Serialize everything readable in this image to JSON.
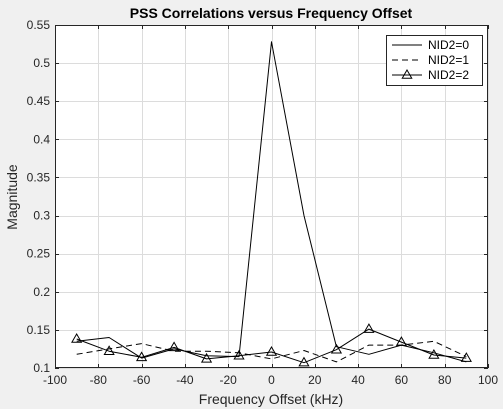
{
  "chart_data": {
    "type": "line",
    "title": "PSS Correlations versus Frequency Offset",
    "xlabel": "Frequency Offset (kHz)",
    "ylabel": "Magnitude",
    "xlim": [
      -100,
      100
    ],
    "ylim": [
      0.1,
      0.55
    ],
    "xticks": [
      "-100",
      "-80",
      "-60",
      "-40",
      "-20",
      "0",
      "20",
      "40",
      "60",
      "80",
      "100"
    ],
    "yticks": [
      "0.1",
      "0.15",
      "0.2",
      "0.25",
      "0.3",
      "0.35",
      "0.4",
      "0.45",
      "0.5",
      "0.55"
    ],
    "grid": true,
    "legend_position": "top-right",
    "x": [
      -90,
      -75,
      -60,
      -45,
      -30,
      -15,
      0,
      15,
      30,
      45,
      60,
      75,
      90
    ],
    "series": [
      {
        "name": "NID2=0",
        "style": "solid",
        "marker": "none",
        "values": [
          0.135,
          0.14,
          0.113,
          0.125,
          0.116,
          0.115,
          0.528,
          0.3,
          0.128,
          0.118,
          0.13,
          0.12,
          0.108
        ]
      },
      {
        "name": "NID2=1",
        "style": "dashed",
        "marker": "none",
        "values": [
          0.118,
          0.125,
          0.132,
          0.122,
          0.122,
          0.12,
          0.112,
          0.123,
          0.108,
          0.13,
          0.13,
          0.135,
          0.115
        ]
      },
      {
        "name": "NID2=2",
        "style": "solid",
        "marker": "triangle",
        "values": [
          0.138,
          0.122,
          0.114,
          0.127,
          0.112,
          0.116,
          0.121,
          0.107,
          0.124,
          0.151,
          0.134,
          0.117,
          0.113
        ]
      }
    ]
  }
}
